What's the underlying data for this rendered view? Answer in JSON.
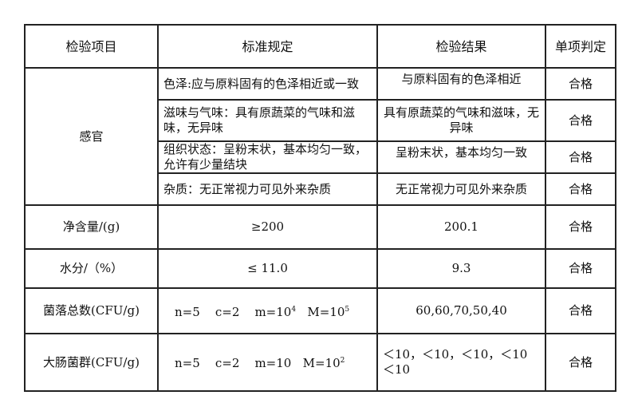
{
  "headers": [
    "检验项目",
    "标准规定",
    "检验结果",
    "单项判定"
  ],
  "sensory": {
    "item": "感官",
    "rows": [
      {
        "standard": "色泽:应与原料固有的色泽相近或一致",
        "result": "与原料固有的色泽相近",
        "verdict": "合格"
      },
      {
        "standard": "滋味与气味：具有原蔬菜的气味和滋味，无异味",
        "result": "具有原蔬菜的气味和滋味，无异味",
        "verdict": "合格"
      },
      {
        "standard": "组织状态：呈粉末状，基本均匀一致，允许有少量结块",
        "result": "呈粉末状，基本均匀一致",
        "verdict": "合格"
      },
      {
        "standard": "杂质：无正常视力可见外来杂质",
        "result": "无正常视力可见外来杂质",
        "verdict": "合格"
      }
    ]
  },
  "net": {
    "item": "净含量/(g)",
    "standard": "≥200",
    "result": "200.1",
    "verdict": "合格"
  },
  "water": {
    "item": "水分/（%）",
    "standard": "≤ 11.0",
    "result": "9.3",
    "verdict": "合格"
  },
  "colony": {
    "item": "菌落总数(CFU/g)",
    "n": "n=5",
    "c": "c=2",
    "m": "m=10",
    "m_exp": "4",
    "M": "M=10",
    "M_exp": "5",
    "result": "60,60,70,50,40",
    "verdict": "合格"
  },
  "coliform": {
    "item": "大肠菌群(CFU/g)",
    "n": "n=5",
    "c": "c=2",
    "m": "m=10",
    "M": "M=10",
    "M_exp": "2",
    "result": "＜10，＜10，＜10，＜10 ＜10",
    "verdict": "合格"
  }
}
